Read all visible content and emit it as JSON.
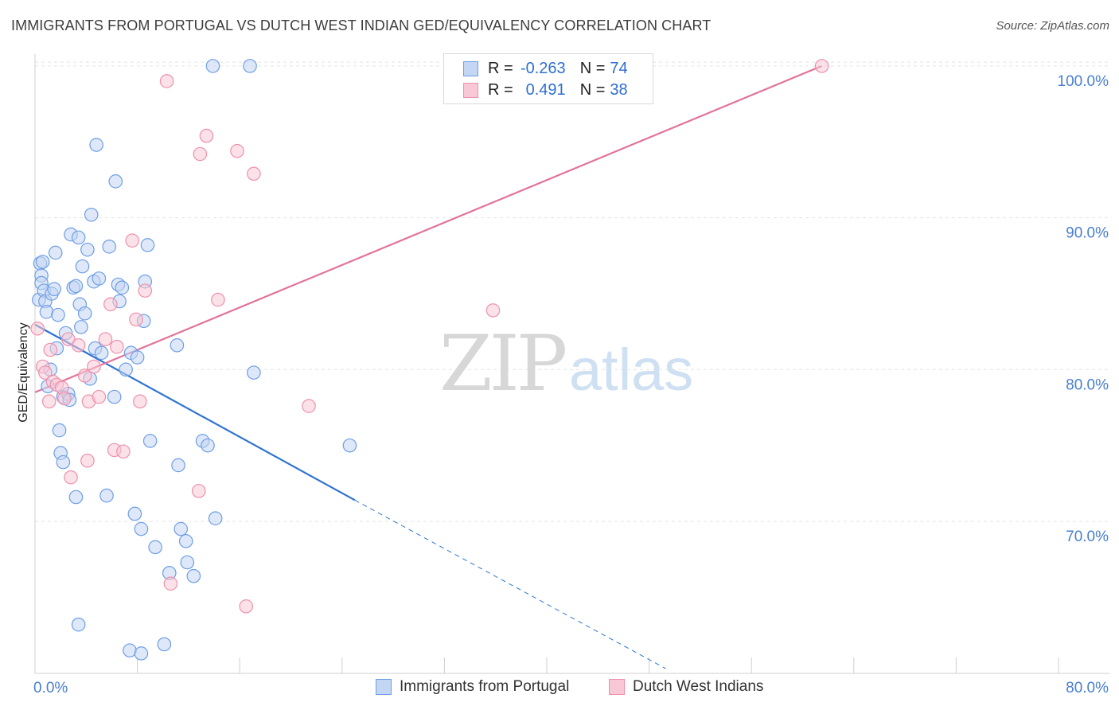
{
  "header": {
    "title": "IMMIGRANTS FROM PORTUGAL VS DUTCH WEST INDIAN GED/EQUIVALENCY CORRELATION CHART",
    "source": "Source: ZipAtlas.com"
  },
  "watermark": {
    "part1": "ZIP",
    "part2": "atlas"
  },
  "legend": {
    "rows": [
      {
        "r_label": "R =",
        "r_value": "-0.263",
        "n_label": "N =",
        "n_value": "74",
        "color": "#6d9ee6",
        "fill": "#c3d6f3"
      },
      {
        "r_label": "R =",
        "r_value": "0.491",
        "n_label": "N =",
        "n_value": "38",
        "color": "#ee90ab",
        "fill": "#f8c8d6"
      }
    ],
    "bottom": [
      {
        "label": "Immigrants from Portugal",
        "color": "#6d9ee6",
        "fill": "#c3d6f3"
      },
      {
        "label": "Dutch West Indians",
        "color": "#ee90ab",
        "fill": "#f8c8d6"
      }
    ]
  },
  "chart_data": {
    "type": "scatter",
    "title": "IMMIGRANTS FROM PORTUGAL VS DUTCH WEST INDIAN GED/EQUIVALENCY CORRELATION CHART",
    "xlabel": "",
    "ylabel": "GED/Equivalency",
    "xlim": [
      0,
      80
    ],
    "ylim": [
      60.3,
      101.2
    ],
    "x_tick_labels": [
      "0.0%",
      "80.0%"
    ],
    "y_ticks": [
      70,
      80,
      90,
      100
    ],
    "y_tick_labels": [
      "70.0%",
      "80.0%",
      "90.0%",
      "100.0%"
    ],
    "grid": true,
    "legend_position": "top-center",
    "series": [
      {
        "name": "Immigrants from Portugal",
        "color": "#6d9ee6",
        "fill": "#c3d6f3",
        "trend": {
          "x0": 0,
          "y0": 82.96,
          "x1": 25,
          "y1": 71.4,
          "dash_x1": 49.3,
          "dash_y1": 60.3,
          "stroke": "#2f74d0"
        },
        "points": [
          [
            0.3,
            84.6
          ],
          [
            0.4,
            87.0
          ],
          [
            0.5,
            86.2
          ],
          [
            0.5,
            85.7
          ],
          [
            0.6,
            87.1
          ],
          [
            0.7,
            85.2
          ],
          [
            0.8,
            84.5
          ],
          [
            0.9,
            83.8
          ],
          [
            1.0,
            78.9
          ],
          [
            1.2,
            80.0
          ],
          [
            1.3,
            85.0
          ],
          [
            1.5,
            85.3
          ],
          [
            1.6,
            87.7
          ],
          [
            1.7,
            81.4
          ],
          [
            1.8,
            83.6
          ],
          [
            1.9,
            76.0
          ],
          [
            2.0,
            74.5
          ],
          [
            2.2,
            78.2
          ],
          [
            2.4,
            82.4
          ],
          [
            2.6,
            78.4
          ],
          [
            2.7,
            78.0
          ],
          [
            2.8,
            88.9
          ],
          [
            3.0,
            85.4
          ],
          [
            3.2,
            85.5
          ],
          [
            3.4,
            88.7
          ],
          [
            3.5,
            84.3
          ],
          [
            3.6,
            82.8
          ],
          [
            3.7,
            86.8
          ],
          [
            3.9,
            83.7
          ],
          [
            4.1,
            87.9
          ],
          [
            4.3,
            79.4
          ],
          [
            4.4,
            90.2
          ],
          [
            4.6,
            85.8
          ],
          [
            4.7,
            81.4
          ],
          [
            4.8,
            94.8
          ],
          [
            5.0,
            86.0
          ],
          [
            5.2,
            81.1
          ],
          [
            5.6,
            71.7
          ],
          [
            5.8,
            88.1
          ],
          [
            6.2,
            78.2
          ],
          [
            6.3,
            92.4
          ],
          [
            6.5,
            85.6
          ],
          [
            6.6,
            84.5
          ],
          [
            6.8,
            85.4
          ],
          [
            7.1,
            80.0
          ],
          [
            7.4,
            61.5
          ],
          [
            7.5,
            81.1
          ],
          [
            7.8,
            70.5
          ],
          [
            8.0,
            80.8
          ],
          [
            8.3,
            69.5
          ],
          [
            8.5,
            83.2
          ],
          [
            8.6,
            85.8
          ],
          [
            8.8,
            88.2
          ],
          [
            9.0,
            75.3
          ],
          [
            9.4,
            68.3
          ],
          [
            10.1,
            61.9
          ],
          [
            10.5,
            66.6
          ],
          [
            11.1,
            81.6
          ],
          [
            11.2,
            73.7
          ],
          [
            11.4,
            69.5
          ],
          [
            11.8,
            68.7
          ],
          [
            11.9,
            67.3
          ],
          [
            12.4,
            66.4
          ],
          [
            13.1,
            75.3
          ],
          [
            13.5,
            75.0
          ],
          [
            13.9,
            100.0
          ],
          [
            14.1,
            70.2
          ],
          [
            16.8,
            100.0
          ],
          [
            17.1,
            79.8
          ],
          [
            24.6,
            75.0
          ],
          [
            2.2,
            73.9
          ],
          [
            3.2,
            71.6
          ],
          [
            3.4,
            63.2
          ],
          [
            8.3,
            61.3
          ]
        ]
      },
      {
        "name": "Dutch West Indians",
        "color": "#ee90ab",
        "fill": "#f8c8d6",
        "trend": {
          "x0": 0,
          "y0": 78.5,
          "x1": 61.5,
          "y1": 100.0,
          "stroke": "#e2739b"
        },
        "points": [
          [
            0.2,
            82.7
          ],
          [
            0.6,
            80.2
          ],
          [
            0.8,
            79.8
          ],
          [
            1.1,
            77.9
          ],
          [
            1.2,
            81.3
          ],
          [
            1.4,
            79.2
          ],
          [
            1.7,
            79.0
          ],
          [
            2.1,
            78.8
          ],
          [
            2.3,
            78.1
          ],
          [
            2.6,
            82.0
          ],
          [
            2.8,
            72.9
          ],
          [
            3.4,
            81.6
          ],
          [
            3.9,
            79.6
          ],
          [
            4.1,
            74.0
          ],
          [
            4.2,
            77.9
          ],
          [
            4.6,
            80.2
          ],
          [
            5.0,
            78.2
          ],
          [
            5.5,
            82.0
          ],
          [
            5.9,
            84.3
          ],
          [
            6.2,
            74.7
          ],
          [
            6.4,
            81.5
          ],
          [
            6.9,
            74.6
          ],
          [
            7.6,
            88.5
          ],
          [
            7.9,
            83.3
          ],
          [
            8.2,
            77.9
          ],
          [
            8.6,
            85.2
          ],
          [
            10.3,
            99.0
          ],
          [
            10.6,
            65.9
          ],
          [
            12.8,
            72.0
          ],
          [
            12.9,
            94.2
          ],
          [
            13.4,
            95.4
          ],
          [
            14.3,
            84.6
          ],
          [
            15.8,
            94.4
          ],
          [
            16.5,
            64.4
          ],
          [
            17.1,
            92.9
          ],
          [
            21.4,
            77.6
          ],
          [
            35.8,
            83.9
          ],
          [
            61.5,
            100.0
          ]
        ]
      }
    ]
  }
}
